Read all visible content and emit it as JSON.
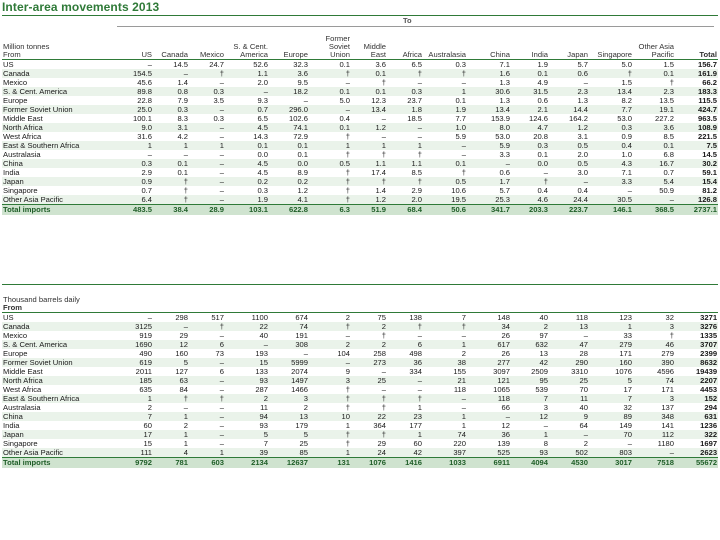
{
  "title": "Inter-area movements 2013",
  "to_label": "To",
  "columns": [
    "US",
    "Canada",
    "Mexico",
    "S. & Cent. America",
    "Europe",
    "Former Soviet Union",
    "Middle East",
    "Africa",
    "Australasia",
    "China",
    "India",
    "Japan",
    "Singapore",
    "Other Asia Pacific",
    "Total"
  ],
  "table1": {
    "unit_label": "Million tonnes",
    "from_label": "From",
    "rows": [
      {
        "label": "US",
        "values": [
          "–",
          "14.5",
          "24.7",
          "52.6",
          "32.3",
          "0.1",
          "3.6",
          "6.5",
          "0.3",
          "7.1",
          "1.9",
          "5.7",
          "5.0",
          "1.5",
          "156.7"
        ]
      },
      {
        "label": "Canada",
        "values": [
          "154.5",
          "–",
          "†",
          "1.1",
          "3.6",
          "†",
          "0.1",
          "†",
          "†",
          "1.6",
          "0.1",
          "0.6",
          "†",
          "0.1",
          "161.9"
        ]
      },
      {
        "label": "Mexico",
        "values": [
          "45.6",
          "1.4",
          "–",
          "2.0",
          "9.5",
          "–",
          "†",
          "–",
          "–",
          "1.3",
          "4.9",
          "–",
          "1.5",
          "†",
          "66.2"
        ]
      },
      {
        "label": "S. & Cent. America",
        "values": [
          "89.8",
          "0.8",
          "0.3",
          "–",
          "18.2",
          "0.1",
          "0.1",
          "0.3",
          "1",
          "30.6",
          "31.5",
          "2.3",
          "13.4",
          "2.3",
          "183.3"
        ]
      },
      {
        "label": "Europe",
        "values": [
          "22.8",
          "7.9",
          "3.5",
          "9.3",
          "–",
          "5.0",
          "12.3",
          "23.7",
          "0.1",
          "1.3",
          "0.6",
          "1.3",
          "8.2",
          "13.5",
          "115.5"
        ]
      },
      {
        "label": "Former Soviet Union",
        "values": [
          "25.0",
          "0.3",
          "–",
          "0.7",
          "296.0",
          "–",
          "13.4",
          "1.8",
          "1.9",
          "13.4",
          "2.1",
          "14.4",
          "7.7",
          "19.1",
          "424.7"
        ]
      },
      {
        "label": "Middle East",
        "values": [
          "100.1",
          "8.3",
          "0.3",
          "6.5",
          "102.6",
          "0.4",
          "–",
          "18.5",
          "7.7",
          "153.9",
          "124.6",
          "164.2",
          "53.0",
          "227.2",
          "963.5"
        ]
      },
      {
        "label": "North Africa",
        "values": [
          "9.0",
          "3.1",
          "–",
          "4.5",
          "74.1",
          "0.1",
          "1.2",
          "–",
          "1.0",
          "8.0",
          "4.7",
          "1.2",
          "0.3",
          "3.6",
          "108.9"
        ]
      },
      {
        "label": "West Africa",
        "values": [
          "31.6",
          "4.2",
          "–",
          "14.3",
          "72.9",
          "†",
          "–",
          "–",
          "5.9",
          "53.0",
          "20.8",
          "3.1",
          "0.9",
          "8.5",
          "221.5"
        ]
      },
      {
        "label": "East & Southern Africa",
        "values": [
          "1",
          "1",
          "1",
          "0.1",
          "0.1",
          "1",
          "1",
          "1",
          "–",
          "5.9",
          "0.3",
          "0.5",
          "0.4",
          "0.1",
          "7.5"
        ]
      },
      {
        "label": "Australasia",
        "values": [
          "–",
          "–",
          "–",
          "0.0",
          "0.1",
          "†",
          "†",
          "†",
          "–",
          "3.3",
          "0.1",
          "2.0",
          "1.0",
          "6.8",
          "14.5"
        ]
      },
      {
        "label": "China",
        "values": [
          "0.3",
          "0.1",
          "–",
          "4.5",
          "0.0",
          "0.5",
          "1.1",
          "1.1",
          "0.1",
          "–",
          "0.0",
          "0.5",
          "4.3",
          "16.7",
          "30.2"
        ]
      },
      {
        "label": "India",
        "values": [
          "2.9",
          "0.1",
          "–",
          "4.5",
          "8.9",
          "†",
          "17.4",
          "8.5",
          "†",
          "0.6",
          "–",
          "3.0",
          "7.1",
          "0.7",
          "59.1"
        ]
      },
      {
        "label": "Japan",
        "values": [
          "0.9",
          "†",
          "–",
          "0.2",
          "0.2",
          "†",
          "†",
          "†",
          "0.5",
          "1.7",
          "†",
          "–",
          "3.3",
          "5.4",
          "15.4"
        ]
      },
      {
        "label": "Singapore",
        "values": [
          "0.7",
          "†",
          "–",
          "0.3",
          "1.2",
          "†",
          "1.4",
          "2.9",
          "10.6",
          "5.7",
          "0.4",
          "0.4",
          "–",
          "50.9",
          "81.2"
        ]
      },
      {
        "label": "Other Asia Pacific",
        "values": [
          "6.4",
          "†",
          "–",
          "1.9",
          "4.1",
          "†",
          "1.2",
          "2.0",
          "19.5",
          "25.3",
          "4.6",
          "24.4",
          "30.5",
          "–",
          "126.8"
        ]
      }
    ],
    "total": {
      "label": "Total imports",
      "values": [
        "483.5",
        "38.4",
        "28.9",
        "103.1",
        "622.8",
        "6.3",
        "51.9",
        "68.4",
        "50.6",
        "341.7",
        "203.3",
        "223.7",
        "146.1",
        "368.5",
        "2737.1"
      ]
    }
  },
  "table2": {
    "unit_label": "Thousand barrels daily",
    "from_label": "From",
    "rows": [
      {
        "label": "US",
        "values": [
          "–",
          "298",
          "517",
          "1100",
          "674",
          "2",
          "75",
          "138",
          "7",
          "148",
          "40",
          "118",
          "123",
          "32",
          "3271"
        ]
      },
      {
        "label": "Canada",
        "values": [
          "3125",
          "–",
          "†",
          "22",
          "74",
          "†",
          "2",
          "†",
          "†",
          "34",
          "2",
          "13",
          "1",
          "3",
          "3276"
        ]
      },
      {
        "label": "Mexico",
        "values": [
          "919",
          "29",
          "–",
          "40",
          "191",
          "–",
          "†",
          "–",
          "–",
          "26",
          "97",
          "–",
          "33",
          "†",
          "1335"
        ]
      },
      {
        "label": "S. & Cent. America",
        "values": [
          "1690",
          "12",
          "6",
          "–",
          "308",
          "2",
          "2",
          "6",
          "1",
          "617",
          "632",
          "47",
          "279",
          "46",
          "3707"
        ]
      },
      {
        "label": "Europe",
        "values": [
          "490",
          "160",
          "73",
          "193",
          "–",
          "104",
          "258",
          "498",
          "2",
          "26",
          "13",
          "28",
          "171",
          "279",
          "2399"
        ]
      },
      {
        "label": "Former Soviet Union",
        "values": [
          "619",
          "5",
          "–",
          "15",
          "5999",
          "–",
          "273",
          "36",
          "38",
          "277",
          "42",
          "290",
          "160",
          "390",
          "8632"
        ]
      },
      {
        "label": "Middle East",
        "values": [
          "2011",
          "127",
          "6",
          "133",
          "2074",
          "9",
          "–",
          "334",
          "155",
          "3097",
          "2509",
          "3310",
          "1076",
          "4596",
          "19439"
        ]
      },
      {
        "label": "North Africa",
        "values": [
          "185",
          "63",
          "–",
          "93",
          "1497",
          "3",
          "25",
          "–",
          "21",
          "121",
          "95",
          "25",
          "5",
          "74",
          "2207"
        ]
      },
      {
        "label": "West Africa",
        "values": [
          "635",
          "84",
          "–",
          "287",
          "1466",
          "†",
          "–",
          "–",
          "118",
          "1065",
          "539",
          "70",
          "17",
          "171",
          "4453"
        ]
      },
      {
        "label": "East & Southern Africa",
        "values": [
          "1",
          "†",
          "†",
          "2",
          "3",
          "†",
          "†",
          "†",
          "–",
          "118",
          "7",
          "11",
          "7",
          "3",
          "152"
        ]
      },
      {
        "label": "Australasia",
        "values": [
          "2",
          "–",
          "–",
          "11",
          "2",
          "†",
          "†",
          "1",
          "–",
          "66",
          "3",
          "40",
          "32",
          "137",
          "294"
        ]
      },
      {
        "label": "China",
        "values": [
          "7",
          "1",
          "–",
          "94",
          "13",
          "10",
          "22",
          "23",
          "1",
          "–",
          "12",
          "9",
          "89",
          "348",
          "631"
        ]
      },
      {
        "label": "India",
        "values": [
          "60",
          "2",
          "–",
          "93",
          "179",
          "1",
          "364",
          "177",
          "1",
          "12",
          "–",
          "64",
          "149",
          "141",
          "1236"
        ]
      },
      {
        "label": "Japan",
        "values": [
          "17",
          "1",
          "–",
          "5",
          "5",
          "†",
          "†",
          "1",
          "74",
          "36",
          "1",
          "–",
          "70",
          "112",
          "322"
        ]
      },
      {
        "label": "Singapore",
        "values": [
          "15",
          "1",
          "–",
          "7",
          "25",
          "†",
          "29",
          "60",
          "220",
          "139",
          "8",
          "2",
          "–",
          "1180",
          "1697"
        ]
      },
      {
        "label": "Other Asia Pacific",
        "values": [
          "111",
          "4",
          "1",
          "39",
          "85",
          "1",
          "24",
          "42",
          "397",
          "525",
          "93",
          "502",
          "803",
          "–",
          "2623"
        ]
      }
    ],
    "total": {
      "label": "Total imports",
      "values": [
        "9792",
        "781",
        "603",
        "2134",
        "12637",
        "131",
        "1076",
        "1416",
        "1033",
        "6911",
        "4094",
        "4530",
        "3017",
        "7518",
        "55672"
      ]
    }
  }
}
